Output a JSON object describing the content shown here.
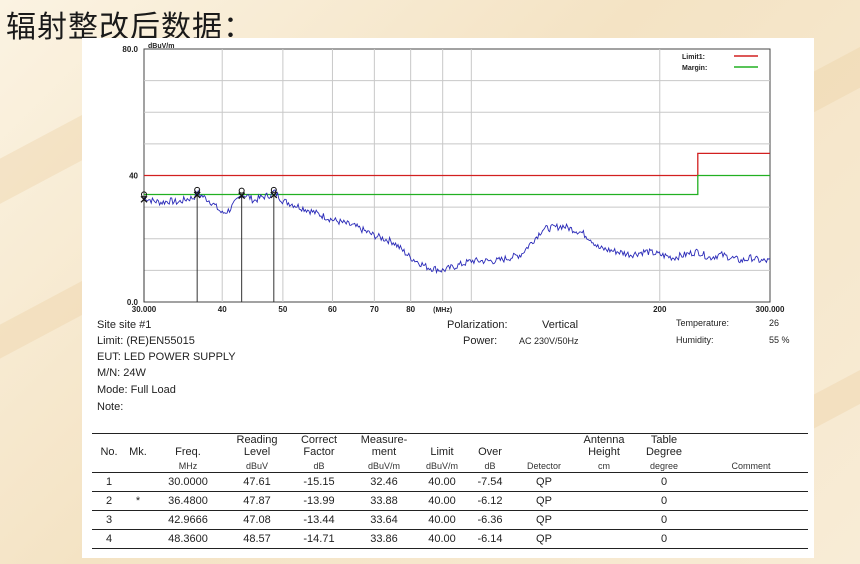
{
  "page": {
    "title": "辐射整改后数据："
  },
  "chart_data": {
    "type": "line",
    "x_scale": "log",
    "xlim": [
      30,
      300
    ],
    "ylim": [
      0,
      80
    ],
    "y_unit": "dBuV/m",
    "x_unit": "(MHz)",
    "x_ticks": [
      30,
      40,
      50,
      60,
      70,
      80,
      200,
      300
    ],
    "x_tick_labels": [
      "30.000",
      "40",
      "50",
      "60",
      "70",
      "80",
      "200",
      "300.000"
    ],
    "y_tick_labels": [
      "80.0",
      "40",
      "0.0"
    ],
    "legend": [
      {
        "name": "Limit1:",
        "color": "#d22020"
      },
      {
        "name": "Margin:",
        "color": "#22b022"
      }
    ],
    "legend_position": "top-right",
    "limit_line": {
      "x": [
        30,
        230,
        230,
        300
      ],
      "y": [
        40,
        40,
        47,
        47
      ],
      "color": "#d22020"
    },
    "margin_line": {
      "x": [
        30,
        230,
        230,
        300
      ],
      "y": [
        34,
        34,
        40,
        40
      ],
      "color": "#22b022"
    },
    "trace": {
      "color": "#2a2ab8",
      "x": [
        30,
        31,
        32,
        33,
        34,
        35,
        36,
        36.5,
        37.5,
        38.5,
        40,
        41,
        42,
        43,
        44,
        45,
        46,
        47,
        48,
        48.4,
        50,
        55,
        60,
        65,
        70,
        75,
        80,
        85,
        90,
        95,
        100,
        110,
        120,
        130,
        140,
        150,
        155,
        160,
        170,
        180,
        190,
        200,
        210,
        220,
        230,
        240,
        250,
        260,
        270,
        280,
        290,
        300
      ],
      "y": [
        33,
        32,
        31.5,
        32,
        31.5,
        32.5,
        33,
        34.5,
        33,
        31.5,
        28,
        29,
        31.5,
        34,
        33.5,
        32,
        33,
        33.5,
        34,
        35,
        32,
        29,
        26,
        24,
        21,
        19,
        14,
        11,
        10,
        11.5,
        13,
        13,
        15,
        23,
        24,
        22,
        20,
        17,
        16,
        15,
        16,
        15,
        14,
        15,
        16,
        14,
        15,
        14,
        13,
        14,
        13,
        13
      ]
    },
    "markers": [
      {
        "x": 30.0,
        "y": 32.46
      },
      {
        "x": 36.48,
        "y": 33.88
      },
      {
        "x": 42.9666,
        "y": 33.64
      },
      {
        "x": 48.36,
        "y": 33.86
      }
    ]
  },
  "info": {
    "site": "Site  site #1",
    "limit": "Limit:  (RE)EN55015",
    "eut": "EUT:  LED POWER SUPPLY",
    "mn": "M/N:  24W",
    "mode": "Mode: Full Load",
    "note": "Note:",
    "polarization_label": "Polarization:",
    "polarization_value": "Vertical",
    "power_label": "Power:",
    "power_value": "AC 230V/50Hz",
    "temperature_label": "Temperature:",
    "temperature_value": "26",
    "humidity_label": "Humidity:",
    "humidity_value": "55 %"
  },
  "table": {
    "headers": [
      "No.",
      "Mk.",
      "Freq.",
      "Reading\nLevel",
      "Correct\nFactor",
      "Measure-\nment",
      "Limit",
      "Over",
      "",
      "Antenna\nHeight",
      "Table\nDegree",
      ""
    ],
    "units": [
      "",
      "",
      "MHz",
      "dBuV",
      "dB",
      "dBuV/m",
      "dBuV/m",
      "dB",
      "Detector",
      "cm",
      "degree",
      "Comment"
    ],
    "rows": [
      [
        "1",
        "",
        "30.0000",
        "47.61",
        "-15.15",
        "32.46",
        "40.00",
        "-7.54",
        "QP",
        "",
        "0",
        ""
      ],
      [
        "2",
        "*",
        "36.4800",
        "47.87",
        "-13.99",
        "33.88",
        "40.00",
        "-6.12",
        "QP",
        "",
        "0",
        ""
      ],
      [
        "3",
        "",
        "42.9666",
        "47.08",
        "-13.44",
        "33.64",
        "40.00",
        "-6.36",
        "QP",
        "",
        "0",
        ""
      ],
      [
        "4",
        "",
        "48.3600",
        "48.57",
        "-14.71",
        "33.86",
        "40.00",
        "-6.14",
        "QP",
        "",
        "0",
        ""
      ]
    ]
  }
}
